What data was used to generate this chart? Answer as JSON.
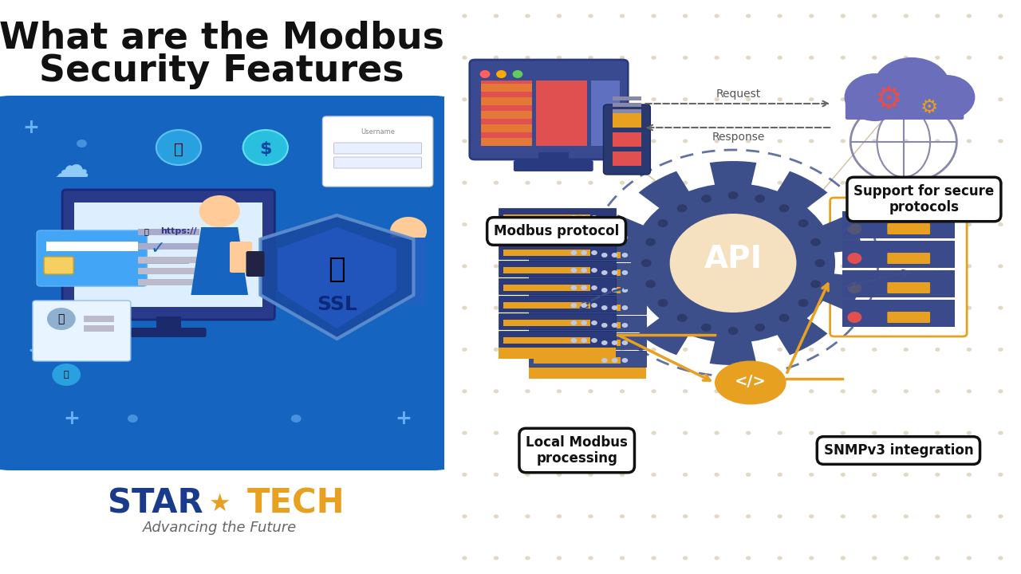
{
  "title_line1": "What are the Modbus",
  "title_line2": "Security Features",
  "title_fontsize": 33,
  "title_color": "#111111",
  "startech_blue": "#1a3a8c",
  "startech_orange": "#e8a020",
  "subtitle_text": "Advancing the Future",
  "label_modbus_protocol": "Modbus protocol",
  "label_support": "Support for secure\nprotocols",
  "label_local_modbus": "Local Modbus\nprocessing",
  "label_snmp": "SNMPv3 integration",
  "api_text": "API",
  "request_text": "Request",
  "response_text": "Response",
  "code_text": "</>",
  "gear_color": "#3d4f8a",
  "gear_dark": "#2d3a6a",
  "arrow_color": "#3d4f8a",
  "orange_arrow_color": "#e8a020",
  "right_panel_bg": "#f5e0c0",
  "monitor_blue": "#3d4f8a",
  "monitor_dark": "#2d3a6a",
  "server_blue": "#3d4f8a",
  "server_orange": "#e8a020",
  "cloud_purple": "#6b6fbb",
  "globe_gray": "#8888aa",
  "dot_grid_color": "#d0bfa0"
}
